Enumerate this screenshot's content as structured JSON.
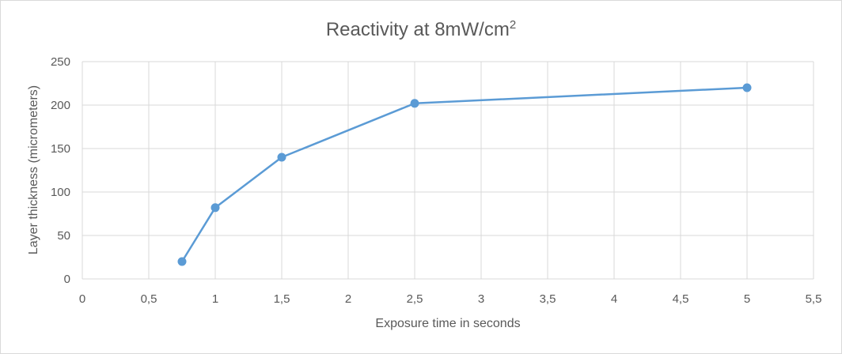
{
  "chart_data": {
    "type": "scatter",
    "title": "Reactivity at 8mW/cm",
    "title_superscript": "2",
    "xlabel": "Exposure time in seconds",
    "ylabel": "Layer thickness (micrometers)",
    "xlim": [
      0,
      5.5
    ],
    "ylim": [
      0,
      250
    ],
    "x_ticks": [
      "0",
      "0,5",
      "1",
      "1,5",
      "2",
      "2,5",
      "3",
      "3,5",
      "4",
      "4,5",
      "5",
      "5,5"
    ],
    "y_ticks": [
      "0",
      "50",
      "100",
      "150",
      "200",
      "250"
    ],
    "grid": true,
    "legend": "none",
    "color": "#5b9bd5",
    "series": [
      {
        "x": [
          0.75,
          1,
          1.5,
          2.5,
          5
        ],
        "y": [
          20,
          82,
          140,
          202,
          220
        ]
      }
    ]
  }
}
